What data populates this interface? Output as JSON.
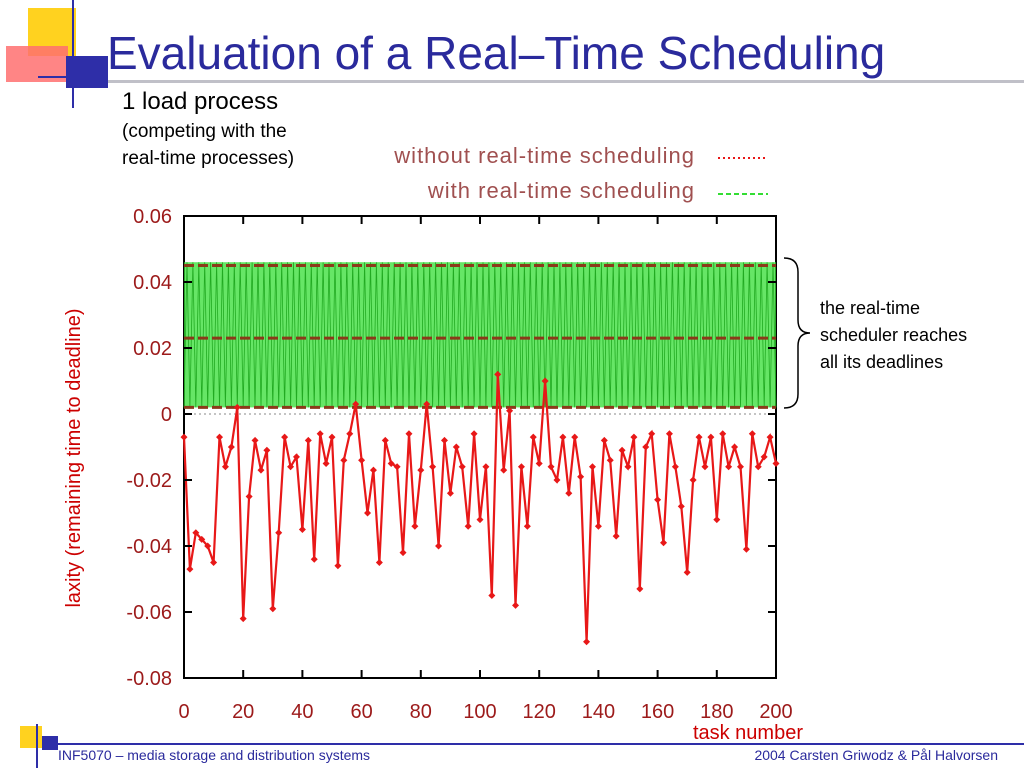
{
  "slide": {
    "title": "Evaluation of a Real–Time Scheduling",
    "subtitle": "1 load process",
    "note_line1": "(competing with the",
    "note_line2": "real-time processes)",
    "annotation": [
      "the real-time",
      "scheduler reaches",
      "all its deadlines"
    ],
    "footer_left": "INF5070 – media storage and distribution systems",
    "footer_right": "2004  Carsten Griwodz & Pål Halvorsen"
  },
  "colors": {
    "title": "#2a2a9c",
    "without_series": "#e81818",
    "with_series_fill": "#33dd33",
    "with_series_line": "#8b3a1a",
    "deco_yellow": "#ffd21f",
    "deco_blue": "#2e2ea8",
    "deco_red": "#ff6a6a"
  },
  "chart_data": {
    "type": "line",
    "xlabel": "task number",
    "ylabel": "laxity (remaining time to deadline)",
    "xlim": [
      0,
      200
    ],
    "ylim": [
      -0.08,
      0.06
    ],
    "x_ticks": [
      "0",
      "20",
      "40",
      "60",
      "80",
      "100",
      "120",
      "140",
      "160",
      "180",
      "200"
    ],
    "y_ticks": [
      "0.06",
      "0.04",
      "0.02",
      "0",
      "-0.02",
      "-0.04",
      "-0.06",
      "-0.08"
    ],
    "legend": [
      "without real-time scheduling",
      "with real-time scheduling"
    ],
    "legend_placement": "top-right",
    "zero_line": true,
    "series": [
      {
        "name": "without real-time scheduling",
        "x": [
          0,
          2,
          4,
          6,
          8,
          10,
          12,
          14,
          16,
          18,
          20,
          22,
          24,
          26,
          28,
          30,
          32,
          34,
          36,
          38,
          40,
          42,
          44,
          46,
          48,
          50,
          52,
          54,
          56,
          58,
          60,
          62,
          64,
          66,
          68,
          70,
          72,
          74,
          76,
          78,
          80,
          82,
          84,
          86,
          88,
          90,
          92,
          94,
          96,
          98,
          100,
          102,
          104,
          106,
          108,
          110,
          112,
          114,
          116,
          118,
          120,
          122,
          124,
          126,
          128,
          130,
          132,
          134,
          136,
          138,
          140,
          142,
          144,
          146,
          148,
          150,
          152,
          154,
          156,
          158,
          160,
          162,
          164,
          166,
          168,
          170,
          172,
          174,
          176,
          178,
          180,
          182,
          184,
          186,
          188,
          190,
          192,
          194,
          196,
          198,
          200
        ],
        "y": [
          -0.007,
          -0.047,
          -0.036,
          -0.038,
          -0.04,
          -0.045,
          -0.007,
          -0.016,
          -0.01,
          0.002,
          -0.062,
          -0.025,
          -0.008,
          -0.017,
          -0.011,
          -0.059,
          -0.036,
          -0.007,
          -0.016,
          -0.013,
          -0.035,
          -0.008,
          -0.044,
          -0.006,
          -0.015,
          -0.007,
          -0.046,
          -0.014,
          -0.006,
          0.003,
          -0.014,
          -0.03,
          -0.017,
          -0.045,
          -0.008,
          -0.015,
          -0.016,
          -0.042,
          -0.006,
          -0.034,
          -0.017,
          0.003,
          -0.016,
          -0.04,
          -0.008,
          -0.024,
          -0.01,
          -0.016,
          -0.034,
          -0.006,
          -0.032,
          -0.016,
          -0.055,
          0.012,
          -0.017,
          0.001,
          -0.058,
          -0.016,
          -0.034,
          -0.007,
          -0.015,
          0.01,
          -0.016,
          -0.02,
          -0.007,
          -0.024,
          -0.007,
          -0.019,
          -0.069,
          -0.016,
          -0.034,
          -0.008,
          -0.014,
          -0.037,
          -0.011,
          -0.016,
          -0.007,
          -0.053,
          -0.01,
          -0.006,
          -0.026,
          -0.039,
          -0.006,
          -0.016,
          -0.028,
          -0.048,
          -0.02,
          -0.007,
          -0.016,
          -0.007,
          -0.032,
          -0.006,
          -0.016,
          -0.01,
          -0.016,
          -0.041,
          -0.006,
          -0.016,
          -0.013,
          -0.007,
          -0.015
        ]
      },
      {
        "name": "with real-time scheduling",
        "y_min": 0.002,
        "y_max": 0.046,
        "levels": [
          0.002,
          0.023,
          0.045
        ],
        "pattern": "oscillates between 0.002 and 0.046 on every task"
      }
    ]
  }
}
